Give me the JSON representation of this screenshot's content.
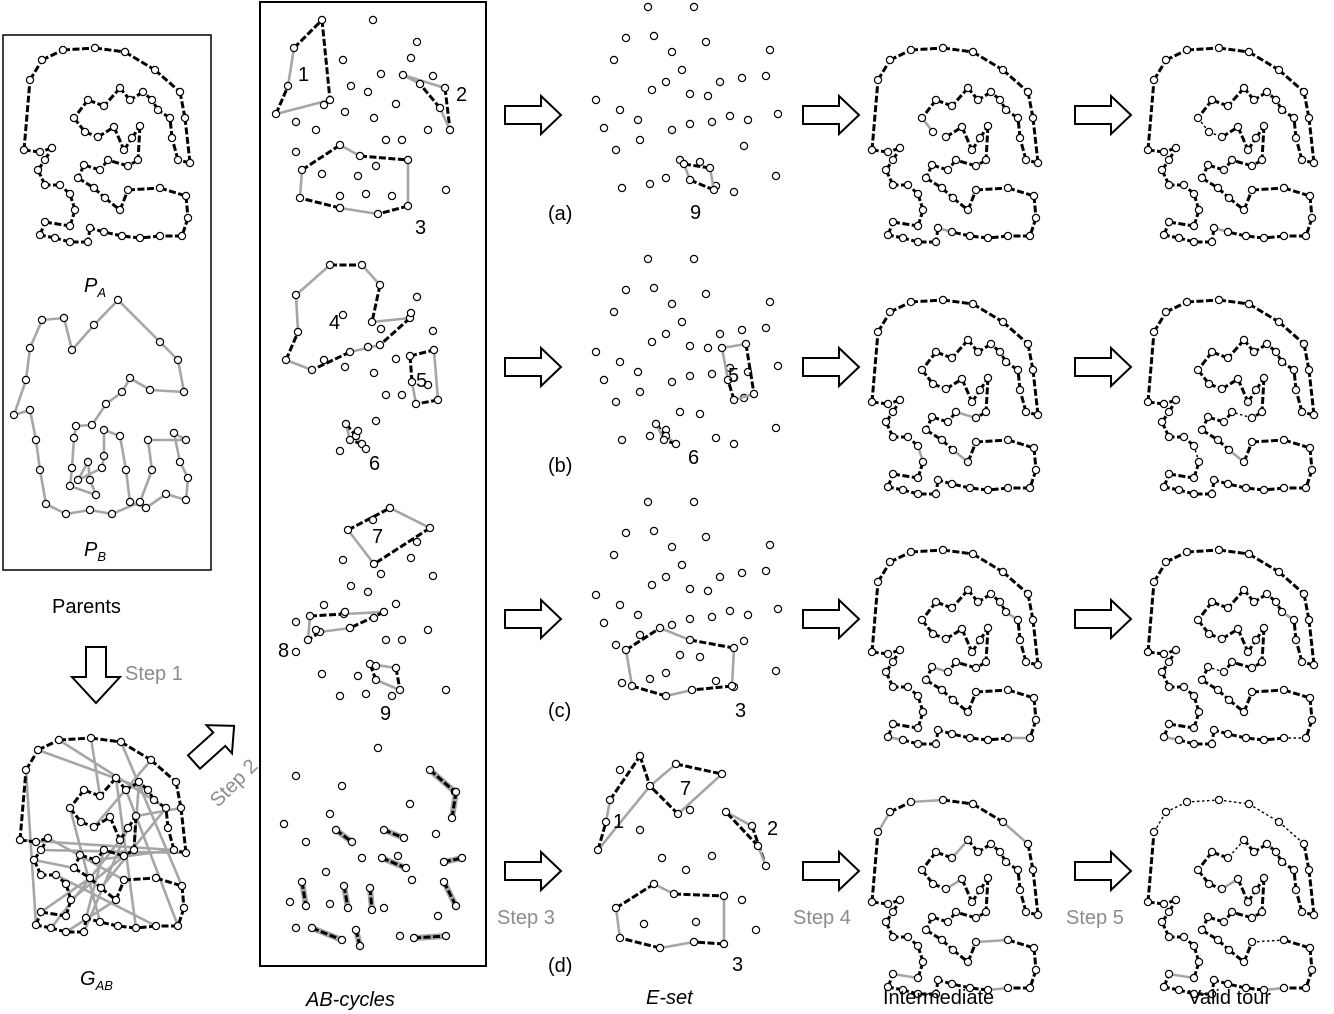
{
  "labels": {
    "pa_main": "P",
    "pa_sub": "A",
    "pb_main": "P",
    "pb_sub": "B",
    "parents": "Parents",
    "step1": "Step 1",
    "gab_main": "G",
    "gab_sub": "AB",
    "step2": "Step 2",
    "ab_cycles": "AB-cycles",
    "e_set": "E-set",
    "intermediate": "Intermediate",
    "valid_tour": "Valid tour",
    "step3": "Step 3",
    "step4": "Step 4",
    "step5": "Step 5"
  },
  "rows": [
    {
      "label": "(a)"
    },
    {
      "label": "(b)"
    },
    {
      "label": "(c)"
    },
    {
      "label": "(d)"
    }
  ],
  "cycle_numbers": {
    "c1": "1",
    "c2": "2",
    "c3": "3",
    "c4": "4",
    "c5": "5",
    "c6": "6",
    "c7": "7",
    "c8": "8",
    "c9": "9",
    "ea9": "9",
    "eb5": "5",
    "eb6": "6",
    "ec3": "3",
    "ed1": "1",
    "ed7": "7",
    "ed2": "2",
    "ed3": "3"
  },
  "colors": {
    "parent_a_edge": "#000000",
    "parent_b_edge": "#a6a6a6",
    "node_fill": "#ffffff",
    "step_label": "#8c8c8c"
  }
}
